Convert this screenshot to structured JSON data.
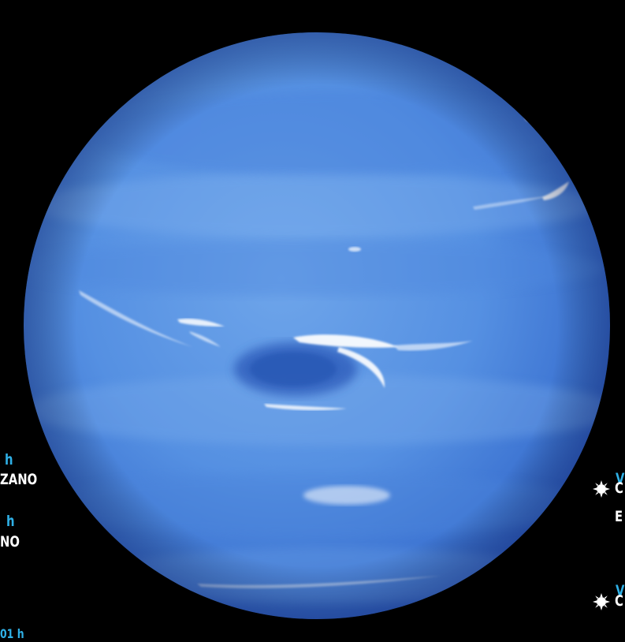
{
  "colors": {
    "background": "#000000",
    "planet_light": "#6fa3e8",
    "planet_mid": "#4f86de",
    "planet_dark": "#2f5fc4",
    "accent_text": "#2fb0e6",
    "label_text": "#ffffff"
  },
  "left_labels": [
    {
      "accent": "h",
      "text": "ZANO"
    },
    {
      "accent": "h",
      "text": "NO"
    },
    {
      "accent": "01 h",
      "text": ""
    }
  ],
  "right_labels": [
    {
      "accent": "V",
      "text": "C",
      "text2": "E",
      "icon": "sun-icon"
    },
    {
      "accent": "V",
      "text": "C",
      "icon": "sun-icon"
    }
  ]
}
